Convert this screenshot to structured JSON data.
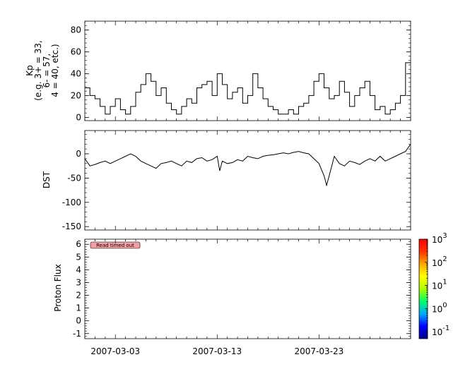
{
  "chart_data": [
    {
      "type": "line",
      "ylabel_lines": [
        "Kp",
        "(e.g. 3+ = 33,",
        "6- = 57,",
        "4 = 40, etc.)"
      ],
      "ylim": [
        -3,
        88
      ],
      "yticks": [
        0,
        20,
        40,
        60,
        80
      ],
      "x_range": [
        "2007-02-28",
        "2007-04-01"
      ],
      "series": [
        {
          "step": true,
          "x": [
            "2007-02-28",
            "2007-02-28 12:00",
            "2007-03-01",
            "2007-03-01 12:00",
            "2007-03-02",
            "2007-03-02 12:00",
            "2007-03-03",
            "2007-03-03 12:00",
            "2007-03-04",
            "2007-03-04 12:00",
            "2007-03-05",
            "2007-03-05 12:00",
            "2007-03-06",
            "2007-03-06 12:00",
            "2007-03-07",
            "2007-03-07 12:00",
            "2007-03-08",
            "2007-03-08 12:00",
            "2007-03-09",
            "2007-03-09 12:00",
            "2007-03-10",
            "2007-03-10 12:00",
            "2007-03-11",
            "2007-03-11 12:00",
            "2007-03-12",
            "2007-03-12 12:00",
            "2007-03-13",
            "2007-03-13 12:00",
            "2007-03-14",
            "2007-03-14 12:00",
            "2007-03-15",
            "2007-03-15 12:00",
            "2007-03-16",
            "2007-03-16 12:00",
            "2007-03-17",
            "2007-03-17 12:00",
            "2007-03-18",
            "2007-03-18 12:00",
            "2007-03-19",
            "2007-03-19 12:00",
            "2007-03-20",
            "2007-03-20 12:00",
            "2007-03-21",
            "2007-03-21 12:00",
            "2007-03-22",
            "2007-03-22 12:00",
            "2007-03-23",
            "2007-03-23 12:00",
            "2007-03-24",
            "2007-03-24 12:00",
            "2007-03-25",
            "2007-03-25 12:00",
            "2007-03-26",
            "2007-03-26 12:00",
            "2007-03-27",
            "2007-03-27 12:00",
            "2007-03-28",
            "2007-03-28 12:00",
            "2007-03-29",
            "2007-03-29 12:00",
            "2007-03-30",
            "2007-03-30 12:00",
            "2007-03-31",
            "2007-03-31 12:00"
          ],
          "y": [
            27,
            20,
            17,
            10,
            3,
            10,
            17,
            7,
            3,
            10,
            23,
            30,
            40,
            33,
            20,
            27,
            13,
            7,
            3,
            10,
            17,
            13,
            27,
            30,
            33,
            20,
            40,
            30,
            17,
            23,
            27,
            13,
            20,
            40,
            27,
            17,
            10,
            7,
            3,
            3,
            7,
            3,
            10,
            13,
            20,
            33,
            40,
            27,
            17,
            20,
            33,
            23,
            10,
            20,
            27,
            33,
            20,
            7,
            10,
            3,
            7,
            13,
            20,
            50
          ]
        }
      ]
    },
    {
      "type": "line",
      "ylabel": "DST",
      "ylim": [
        -157,
        48
      ],
      "yticks": [
        0,
        -50,
        -100,
        -150
      ],
      "x_range": [
        "2007-02-28",
        "2007-04-01"
      ],
      "series": [
        {
          "x": [
            "2007-02-28",
            "2007-02-28 12:00",
            "2007-03-01",
            "2007-03-01 12:00",
            "2007-03-02",
            "2007-03-02 12:00",
            "2007-03-03",
            "2007-03-03 12:00",
            "2007-03-04",
            "2007-03-04 12:00",
            "2007-03-05",
            "2007-03-05 12:00",
            "2007-03-06",
            "2007-03-06 12:00",
            "2007-03-07",
            "2007-03-07 12:00",
            "2007-03-08",
            "2007-03-08 12:00",
            "2007-03-09",
            "2007-03-09 12:00",
            "2007-03-10",
            "2007-03-10 12:00",
            "2007-03-11",
            "2007-03-11 12:00",
            "2007-03-12",
            "2007-03-12 12:00",
            "2007-03-13",
            "2007-03-13 06:00",
            "2007-03-13 12:00",
            "2007-03-14",
            "2007-03-14 12:00",
            "2007-03-15",
            "2007-03-15 12:00",
            "2007-03-16",
            "2007-03-16 12:00",
            "2007-03-17",
            "2007-03-17 12:00",
            "2007-03-18",
            "2007-03-18 12:00",
            "2007-03-19",
            "2007-03-19 12:00",
            "2007-03-20",
            "2007-03-20 12:00",
            "2007-03-21",
            "2007-03-21 12:00",
            "2007-03-22",
            "2007-03-22 12:00",
            "2007-03-23",
            "2007-03-23 12:00",
            "2007-03-23 18:00",
            "2007-03-24",
            "2007-03-24 12:00",
            "2007-03-25",
            "2007-03-25 12:00",
            "2007-03-26",
            "2007-03-26 12:00",
            "2007-03-27",
            "2007-03-27 12:00",
            "2007-03-28",
            "2007-03-28 12:00",
            "2007-03-29",
            "2007-03-29 12:00",
            "2007-03-30",
            "2007-03-30 12:00",
            "2007-03-31",
            "2007-03-31 12:00",
            "2007-04-01"
          ],
          "y": [
            -10,
            -25,
            -22,
            -18,
            -15,
            -20,
            -15,
            -10,
            -5,
            0,
            -5,
            -15,
            -20,
            -25,
            -30,
            -20,
            -18,
            -15,
            -20,
            -25,
            -15,
            -18,
            -10,
            -8,
            -15,
            -12,
            -5,
            -35,
            -15,
            -20,
            -18,
            -12,
            -15,
            -5,
            -8,
            -10,
            -5,
            -3,
            -2,
            0,
            2,
            0,
            3,
            5,
            2,
            0,
            -10,
            -20,
            -45,
            -65,
            -45,
            -5,
            -20,
            -25,
            -15,
            -18,
            -22,
            -15,
            -10,
            -15,
            -5,
            -15,
            -10,
            -5,
            0,
            5,
            20
          ]
        }
      ]
    },
    {
      "type": "heatmap",
      "ylabel": "Proton Flux",
      "ylim": [
        -1.4,
        6.4
      ],
      "yticks": [
        -1,
        0,
        1,
        2,
        3,
        4,
        5,
        6
      ],
      "x_range": [
        "2007-02-28",
        "2007-04-01"
      ],
      "message": "Read timed out",
      "colorbar": {
        "scale": "log",
        "range": [
          0.05,
          1000
        ],
        "tick_base": "10",
        "tick_exponents": [
          "-1",
          "0",
          "1",
          "2",
          "3"
        ],
        "colors": [
          "#00008b",
          "#0000ff",
          "#00aaff",
          "#00ff66",
          "#aaff00",
          "#ffff00",
          "#ffaa00",
          "#ff3300",
          "#ff0000"
        ]
      },
      "values": []
    }
  ],
  "x_axis": {
    "tick_labels": [
      "2007-03-03",
      "2007-03-13",
      "2007-03-23"
    ],
    "tick_dates": [
      "2007-03-03",
      "2007-03-13",
      "2007-03-23"
    ]
  }
}
